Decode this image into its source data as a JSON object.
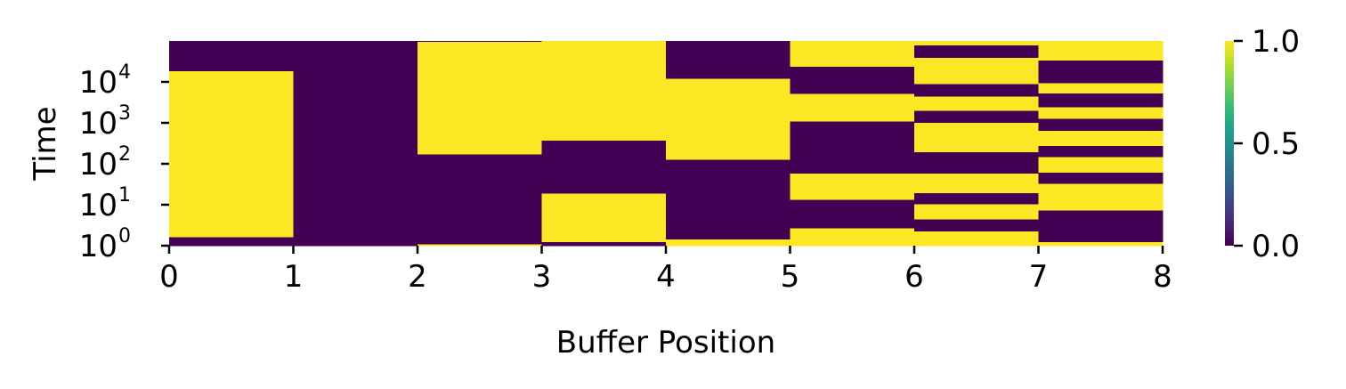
{
  "chart_data": {
    "type": "heatmap",
    "title": "",
    "xlabel": "Buffer Position",
    "ylabel": "Time",
    "x_ticks": [
      "0",
      "1",
      "2",
      "3",
      "4",
      "5",
      "6",
      "7",
      "8"
    ],
    "xlim": [
      0,
      8
    ],
    "y_scale": "log",
    "ylim": [
      1,
      100000
    ],
    "y_ticks": [
      {
        "value": 1,
        "base": "10",
        "exp": "0"
      },
      {
        "value": 10,
        "base": "10",
        "exp": "1"
      },
      {
        "value": 100,
        "base": "10",
        "exp": "2"
      },
      {
        "value": 1000,
        "base": "10",
        "exp": "3"
      },
      {
        "value": 10000,
        "base": "10",
        "exp": "4"
      }
    ],
    "colormap": "viridis",
    "colorbar": {
      "min": 0,
      "max": 1,
      "ticks": [
        "0.0",
        "0.5",
        "1.0"
      ],
      "min_color": "#440154",
      "max_color": "#fde725"
    },
    "columns": [
      {
        "position": 0,
        "segments": [
          [
            1,
            1.65,
            0
          ],
          [
            1.65,
            18800,
            1
          ],
          [
            18800,
            100000,
            0
          ]
        ]
      },
      {
        "position": 1,
        "segments": [
          [
            1,
            100000,
            0
          ]
        ]
      },
      {
        "position": 2,
        "segments": [
          [
            1,
            1.1,
            1
          ],
          [
            1.1,
            175,
            0
          ],
          [
            175,
            97000,
            1
          ],
          [
            97000,
            100000,
            0
          ]
        ]
      },
      {
        "position": 3,
        "segments": [
          [
            1,
            1.25,
            0
          ],
          [
            1.25,
            19.5,
            1
          ],
          [
            19.5,
            380,
            0
          ],
          [
            380,
            100000,
            1
          ]
        ]
      },
      {
        "position": 4,
        "segments": [
          [
            1,
            1.45,
            1
          ],
          [
            1.45,
            130,
            0
          ],
          [
            130,
            12400,
            1
          ],
          [
            12400,
            100000,
            0
          ]
        ]
      },
      {
        "position": 5,
        "segments": [
          [
            1,
            2.75,
            1
          ],
          [
            2.75,
            13.5,
            0
          ],
          [
            13.5,
            60,
            1
          ],
          [
            60,
            1120,
            0
          ],
          [
            1120,
            5200,
            1
          ],
          [
            5200,
            24000,
            0
          ],
          [
            24000,
            100000,
            1
          ]
        ]
      },
      {
        "position": 6,
        "segments": [
          [
            1,
            2.3,
            1
          ],
          [
            2.3,
            4.5,
            0
          ],
          [
            4.5,
            10.5,
            1
          ],
          [
            10.5,
            20,
            0
          ],
          [
            20,
            60,
            1
          ],
          [
            60,
            198,
            0
          ],
          [
            198,
            1020,
            1
          ],
          [
            1020,
            2050,
            0
          ],
          [
            2050,
            4500,
            1
          ],
          [
            4500,
            9000,
            0
          ],
          [
            9000,
            40000,
            1
          ],
          [
            40000,
            80000,
            0
          ],
          [
            80000,
            100000,
            1
          ]
        ]
      },
      {
        "position": 7,
        "segments": [
          [
            1,
            1.25,
            1
          ],
          [
            1.25,
            7.5,
            0
          ],
          [
            7.5,
            33,
            1
          ],
          [
            33,
            62,
            0
          ],
          [
            62,
            150,
            1
          ],
          [
            150,
            280,
            0
          ],
          [
            280,
            650,
            1
          ],
          [
            650,
            1300,
            0
          ],
          [
            1300,
            2450,
            1
          ],
          [
            2450,
            5400,
            0
          ],
          [
            5400,
            9500,
            1
          ],
          [
            9500,
            34000,
            0
          ],
          [
            34000,
            100000,
            1
          ]
        ]
      }
    ]
  }
}
